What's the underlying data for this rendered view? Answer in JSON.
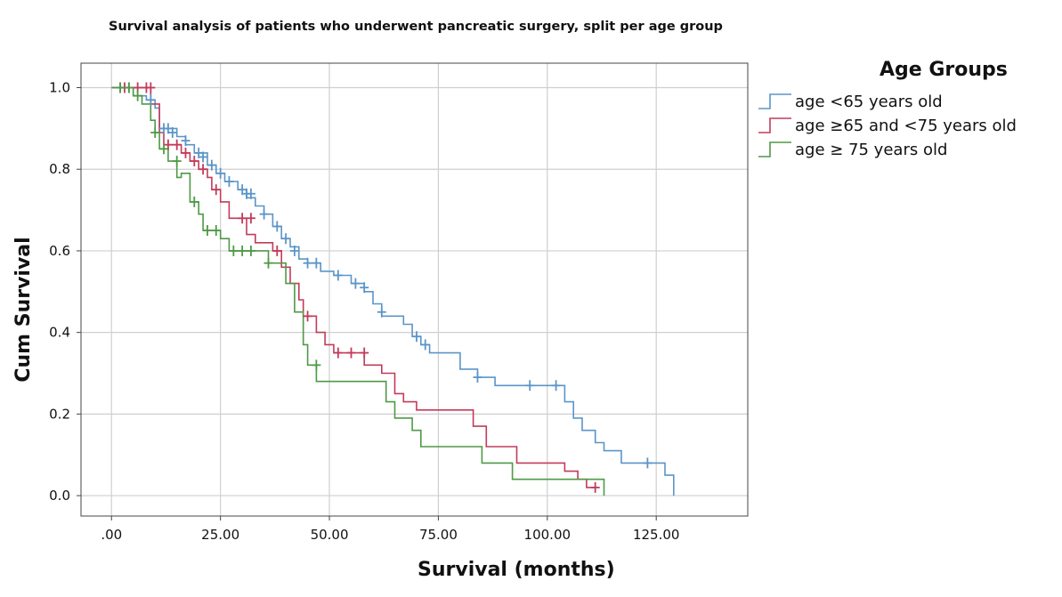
{
  "chart_data": {
    "type": "line",
    "subtype": "kaplan-meier step",
    "title": "Survival analysis of patients who underwent pancreatic surgery, split per age group",
    "xlabel": "Survival (months)",
    "ylabel": "Cum Survival",
    "xlim": [
      -7,
      146
    ],
    "ylim": [
      -0.05,
      1.06
    ],
    "xticks": [
      0,
      25,
      50,
      75,
      100,
      125
    ],
    "xtick_labels": [
      ".00",
      "25.00",
      "50.00",
      "75.00",
      "100.00",
      "125.00"
    ],
    "yticks": [
      0,
      0.2,
      0.4,
      0.6,
      0.8,
      1.0
    ],
    "ytick_labels": [
      "0.0",
      "0.2",
      "0.4",
      "0.6",
      "0.8",
      "1.0"
    ],
    "grid": true,
    "legend": {
      "title": "Age Groups",
      "position": "right"
    },
    "series": [
      {
        "name": "age <65 years old",
        "color": "#5b95c8",
        "points": [
          [
            0,
            1.0
          ],
          [
            5,
            1.0
          ],
          [
            5,
            0.98
          ],
          [
            8,
            0.98
          ],
          [
            8,
            0.97
          ],
          [
            10,
            0.97
          ],
          [
            10,
            0.95
          ],
          [
            11,
            0.95
          ],
          [
            11,
            0.9
          ],
          [
            15,
            0.9
          ],
          [
            15,
            0.88
          ],
          [
            17,
            0.88
          ],
          [
            17,
            0.86
          ],
          [
            19,
            0.86
          ],
          [
            19,
            0.84
          ],
          [
            22,
            0.84
          ],
          [
            22,
            0.81
          ],
          [
            24,
            0.81
          ],
          [
            24,
            0.79
          ],
          [
            26,
            0.79
          ],
          [
            26,
            0.77
          ],
          [
            29,
            0.77
          ],
          [
            29,
            0.75
          ],
          [
            31,
            0.75
          ],
          [
            31,
            0.73
          ],
          [
            33,
            0.73
          ],
          [
            33,
            0.71
          ],
          [
            35,
            0.71
          ],
          [
            35,
            0.69
          ],
          [
            37,
            0.69
          ],
          [
            37,
            0.66
          ],
          [
            39,
            0.66
          ],
          [
            39,
            0.63
          ],
          [
            41,
            0.63
          ],
          [
            41,
            0.61
          ],
          [
            43,
            0.61
          ],
          [
            43,
            0.58
          ],
          [
            45,
            0.58
          ],
          [
            45,
            0.57
          ],
          [
            48,
            0.57
          ],
          [
            48,
            0.55
          ],
          [
            51,
            0.55
          ],
          [
            51,
            0.54
          ],
          [
            55,
            0.54
          ],
          [
            55,
            0.52
          ],
          [
            58,
            0.52
          ],
          [
            58,
            0.5
          ],
          [
            60,
            0.5
          ],
          [
            60,
            0.47
          ],
          [
            62,
            0.47
          ],
          [
            62,
            0.44
          ],
          [
            67,
            0.44
          ],
          [
            67,
            0.42
          ],
          [
            69,
            0.42
          ],
          [
            69,
            0.39
          ],
          [
            71,
            0.39
          ],
          [
            71,
            0.37
          ],
          [
            73,
            0.37
          ],
          [
            73,
            0.35
          ],
          [
            80,
            0.35
          ],
          [
            80,
            0.31
          ],
          [
            84,
            0.31
          ],
          [
            84,
            0.29
          ],
          [
            88,
            0.29
          ],
          [
            88,
            0.27
          ],
          [
            104,
            0.27
          ],
          [
            104,
            0.23
          ],
          [
            106,
            0.23
          ],
          [
            106,
            0.19
          ],
          [
            108,
            0.19
          ],
          [
            108,
            0.16
          ],
          [
            111,
            0.16
          ],
          [
            111,
            0.13
          ],
          [
            113,
            0.13
          ],
          [
            113,
            0.11
          ],
          [
            117,
            0.11
          ],
          [
            117,
            0.08
          ],
          [
            127,
            0.08
          ],
          [
            127,
            0.05
          ],
          [
            129,
            0.05
          ],
          [
            129,
            0.0
          ]
        ],
        "censored": [
          [
            2,
            1.0
          ],
          [
            4,
            1.0
          ],
          [
            9,
            0.97
          ],
          [
            12,
            0.9
          ],
          [
            13,
            0.9
          ],
          [
            14,
            0.89
          ],
          [
            17,
            0.87
          ],
          [
            20,
            0.84
          ],
          [
            21,
            0.83
          ],
          [
            23,
            0.81
          ],
          [
            25,
            0.79
          ],
          [
            27,
            0.77
          ],
          [
            30,
            0.75
          ],
          [
            31,
            0.74
          ],
          [
            32,
            0.74
          ],
          [
            35,
            0.69
          ],
          [
            38,
            0.66
          ],
          [
            40,
            0.63
          ],
          [
            42,
            0.6
          ],
          [
            45,
            0.57
          ],
          [
            47,
            0.57
          ],
          [
            52,
            0.54
          ],
          [
            56,
            0.52
          ],
          [
            58,
            0.51
          ],
          [
            62,
            0.45
          ],
          [
            70,
            0.39
          ],
          [
            72,
            0.37
          ],
          [
            84,
            0.29
          ],
          [
            96,
            0.27
          ],
          [
            102,
            0.27
          ],
          [
            123,
            0.08
          ]
        ]
      },
      {
        "name": "age ≥65 and <75 years old",
        "color": "#c23b5a",
        "points": [
          [
            0,
            1.0
          ],
          [
            9,
            1.0
          ],
          [
            9,
            0.96
          ],
          [
            11,
            0.96
          ],
          [
            11,
            0.89
          ],
          [
            12,
            0.89
          ],
          [
            12,
            0.86
          ],
          [
            16,
            0.86
          ],
          [
            16,
            0.84
          ],
          [
            18,
            0.84
          ],
          [
            18,
            0.82
          ],
          [
            20,
            0.82
          ],
          [
            20,
            0.8
          ],
          [
            22,
            0.8
          ],
          [
            22,
            0.78
          ],
          [
            23,
            0.78
          ],
          [
            23,
            0.75
          ],
          [
            25,
            0.75
          ],
          [
            25,
            0.72
          ],
          [
            27,
            0.72
          ],
          [
            27,
            0.68
          ],
          [
            31,
            0.68
          ],
          [
            31,
            0.64
          ],
          [
            33,
            0.64
          ],
          [
            33,
            0.62
          ],
          [
            37,
            0.62
          ],
          [
            37,
            0.6
          ],
          [
            39,
            0.6
          ],
          [
            39,
            0.56
          ],
          [
            41,
            0.56
          ],
          [
            41,
            0.52
          ],
          [
            43,
            0.52
          ],
          [
            43,
            0.48
          ],
          [
            44,
            0.48
          ],
          [
            44,
            0.44
          ],
          [
            47,
            0.44
          ],
          [
            47,
            0.4
          ],
          [
            49,
            0.4
          ],
          [
            49,
            0.37
          ],
          [
            51,
            0.37
          ],
          [
            51,
            0.35
          ],
          [
            58,
            0.35
          ],
          [
            58,
            0.32
          ],
          [
            62,
            0.32
          ],
          [
            62,
            0.3
          ],
          [
            65,
            0.3
          ],
          [
            65,
            0.25
          ],
          [
            67,
            0.25
          ],
          [
            67,
            0.23
          ],
          [
            70,
            0.23
          ],
          [
            70,
            0.21
          ],
          [
            83,
            0.21
          ],
          [
            83,
            0.17
          ],
          [
            86,
            0.17
          ],
          [
            86,
            0.12
          ],
          [
            93,
            0.12
          ],
          [
            93,
            0.08
          ],
          [
            104,
            0.08
          ],
          [
            104,
            0.06
          ],
          [
            107,
            0.06
          ],
          [
            107,
            0.04
          ],
          [
            109,
            0.04
          ],
          [
            109,
            0.02
          ],
          [
            111,
            0.02
          ]
        ],
        "censored": [
          [
            3,
            1.0
          ],
          [
            6,
            1.0
          ],
          [
            8,
            1.0
          ],
          [
            9,
            1.0
          ],
          [
            13,
            0.86
          ],
          [
            15,
            0.86
          ],
          [
            17,
            0.84
          ],
          [
            19,
            0.82
          ],
          [
            21,
            0.8
          ],
          [
            24,
            0.75
          ],
          [
            30,
            0.68
          ],
          [
            32,
            0.68
          ],
          [
            38,
            0.6
          ],
          [
            45,
            0.44
          ],
          [
            52,
            0.35
          ],
          [
            55,
            0.35
          ],
          [
            58,
            0.35
          ],
          [
            111,
            0.02
          ]
        ]
      },
      {
        "name": "age ≥ 75 years old",
        "color": "#4e9a46",
        "points": [
          [
            0,
            1.0
          ],
          [
            5,
            1.0
          ],
          [
            5,
            0.98
          ],
          [
            7,
            0.98
          ],
          [
            7,
            0.96
          ],
          [
            9,
            0.96
          ],
          [
            9,
            0.92
          ],
          [
            10,
            0.92
          ],
          [
            10,
            0.89
          ],
          [
            11,
            0.89
          ],
          [
            11,
            0.85
          ],
          [
            13,
            0.85
          ],
          [
            13,
            0.82
          ],
          [
            15,
            0.82
          ],
          [
            15,
            0.78
          ],
          [
            16,
            0.78
          ],
          [
            16,
            0.79
          ],
          [
            18,
            0.79
          ],
          [
            18,
            0.72
          ],
          [
            20,
            0.72
          ],
          [
            20,
            0.69
          ],
          [
            21,
            0.69
          ],
          [
            21,
            0.65
          ],
          [
            25,
            0.65
          ],
          [
            25,
            0.63
          ],
          [
            27,
            0.63
          ],
          [
            27,
            0.6
          ],
          [
            36,
            0.6
          ],
          [
            36,
            0.57
          ],
          [
            40,
            0.57
          ],
          [
            40,
            0.52
          ],
          [
            42,
            0.52
          ],
          [
            42,
            0.45
          ],
          [
            44,
            0.45
          ],
          [
            44,
            0.37
          ],
          [
            45,
            0.37
          ],
          [
            45,
            0.32
          ],
          [
            47,
            0.32
          ],
          [
            47,
            0.28
          ],
          [
            63,
            0.28
          ],
          [
            63,
            0.23
          ],
          [
            65,
            0.23
          ],
          [
            65,
            0.19
          ],
          [
            69,
            0.19
          ],
          [
            69,
            0.16
          ],
          [
            71,
            0.16
          ],
          [
            71,
            0.12
          ],
          [
            85,
            0.12
          ],
          [
            85,
            0.08
          ],
          [
            92,
            0.08
          ],
          [
            92,
            0.04
          ],
          [
            104,
            0.04
          ],
          [
            104,
            0.04
          ],
          [
            113,
            0.04
          ],
          [
            113,
            0.0
          ]
        ],
        "censored": [
          [
            2,
            1.0
          ],
          [
            4,
            1.0
          ],
          [
            6,
            0.98
          ],
          [
            10,
            0.89
          ],
          [
            12,
            0.85
          ],
          [
            15,
            0.82
          ],
          [
            19,
            0.72
          ],
          [
            22,
            0.65
          ],
          [
            24,
            0.65
          ],
          [
            28,
            0.6
          ],
          [
            30,
            0.6
          ],
          [
            32,
            0.6
          ],
          [
            36,
            0.57
          ],
          [
            47,
            0.32
          ]
        ]
      }
    ]
  }
}
